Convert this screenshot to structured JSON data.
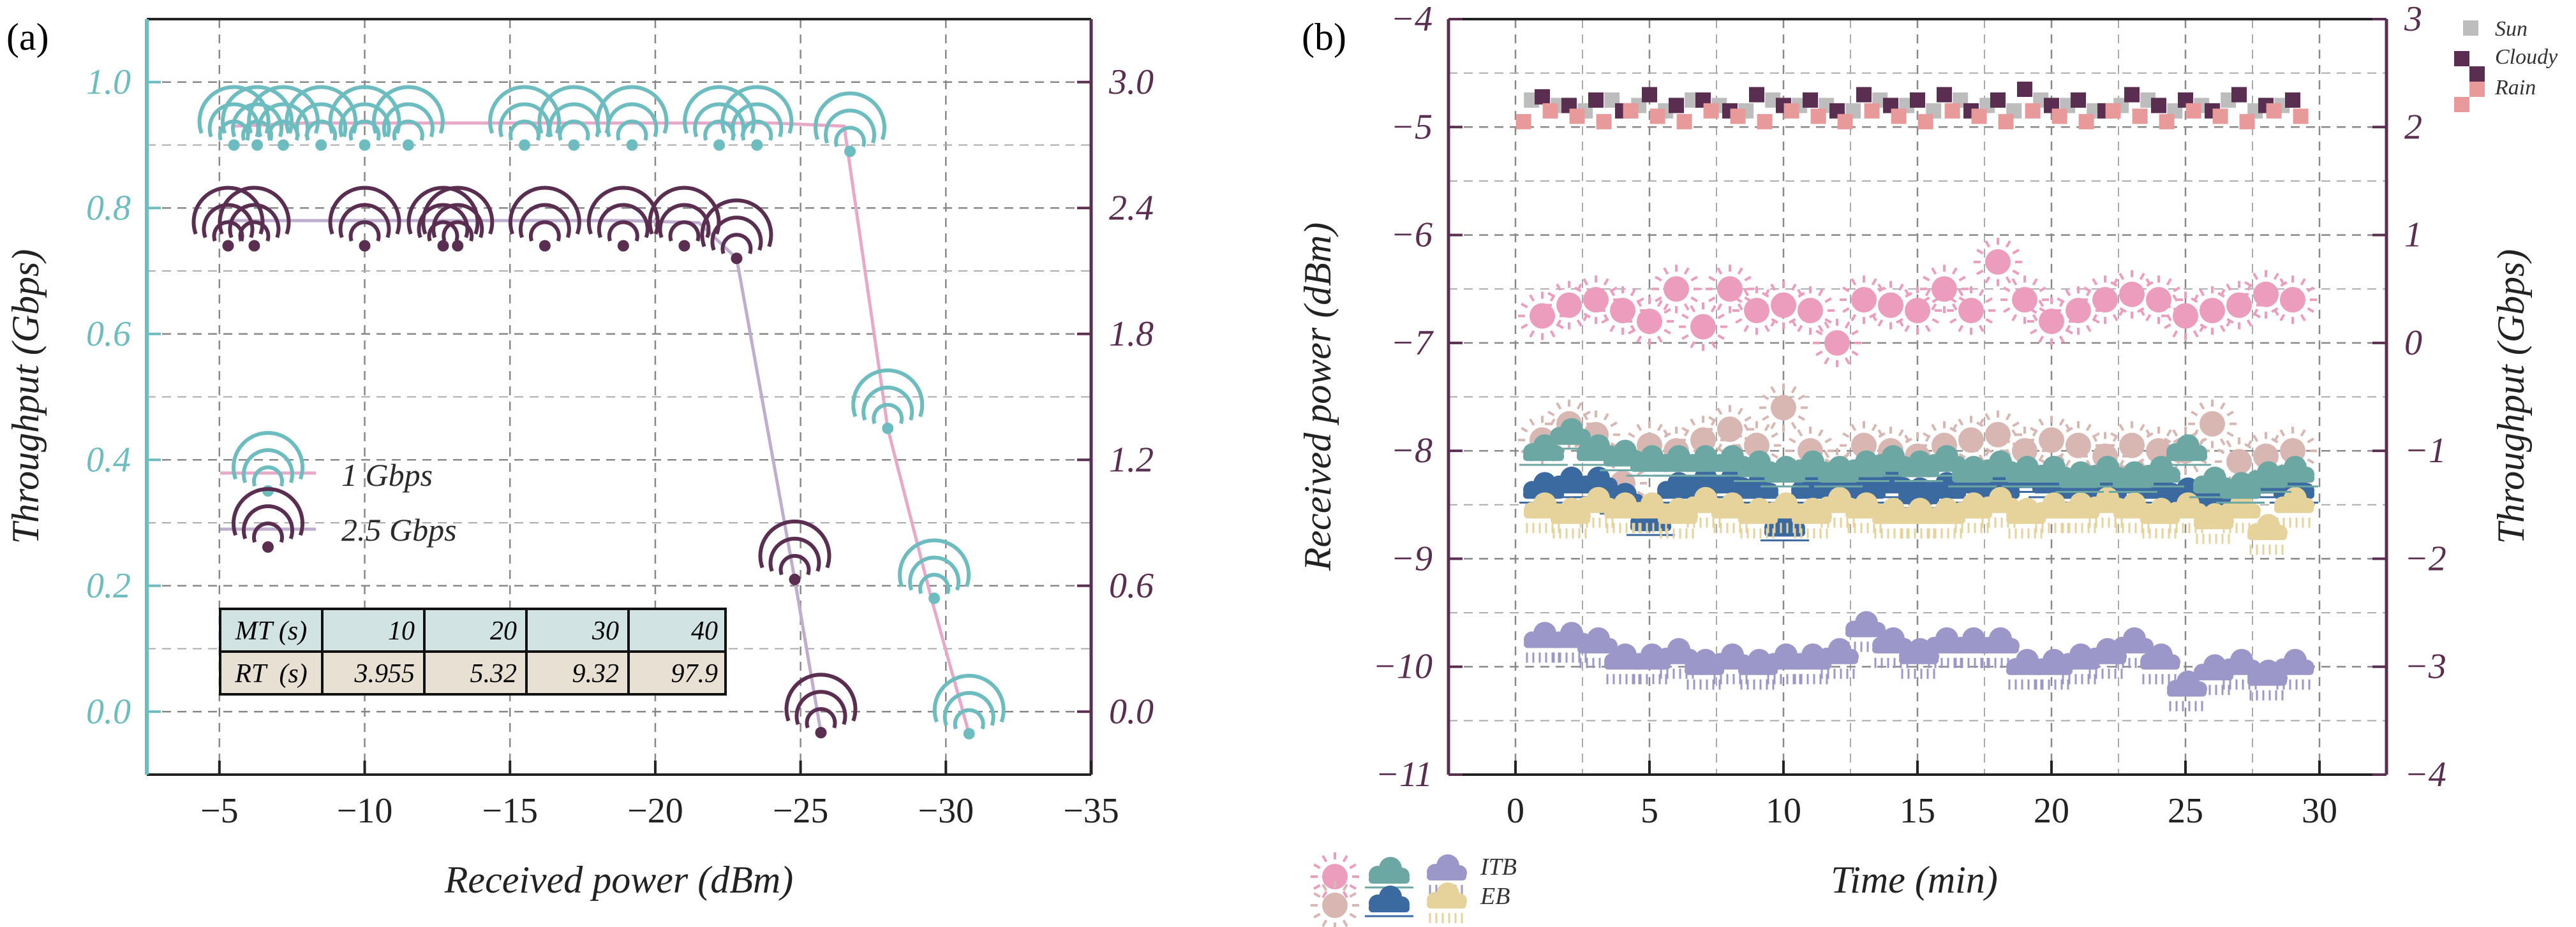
{
  "colors": {
    "teal": "#6cbcc0",
    "plum": "#5a2e50",
    "pink": "#e8a8c8",
    "lilac": "#bfadd0",
    "grid": "#888888",
    "sun_pink": "#ec9dbd",
    "sun_beige": "#d8b7b2",
    "cloud_teal": "#6ca7a4",
    "cloud_blue": "#3b6aa0",
    "rain_lilac": "#9b97c8",
    "rain_yellow": "#e6d39c",
    "sun_grey": "#bdbdbd",
    "cloudy_plum": "#5a2e50",
    "rain_salmon": "#e89a9a",
    "table_blue": "#d2e3e4",
    "table_beige": "#e8e0d2"
  },
  "chart_data": [
    {
      "panel_label": "(a)",
      "type": "line",
      "xlabel": "Received power (dBm)",
      "ylabel_left": "Throughput (Gbps)",
      "xlim": [
        -2.5,
        -35
      ],
      "xticks": [
        -5,
        -10,
        -15,
        -20,
        -25,
        -30,
        -35
      ],
      "xtick_labels": [
        "−5",
        "−10",
        "−15",
        "−20",
        "−25",
        "−30",
        "−35"
      ],
      "ylim_left": [
        -0.1,
        1.1
      ],
      "yticks_left": [
        0.0,
        0.2,
        0.4,
        0.6,
        0.8,
        1.0
      ],
      "ytick_labels_left": [
        "0.0",
        "0.2",
        "0.4",
        "0.6",
        "0.8",
        "1.0"
      ],
      "ylim_right": [
        -0.3,
        3.3
      ],
      "yticks_right": [
        0.0,
        0.6,
        1.2,
        1.8,
        2.4,
        3.0
      ],
      "ytick_labels_right": [
        "0.0",
        "0.6",
        "1.2",
        "1.8",
        "2.4",
        "3.0"
      ],
      "series": [
        {
          "name": "1 Gbps",
          "axis": "left",
          "line_x": [
            -5.5,
            -8,
            -12,
            -16,
            -19,
            -22,
            -24,
            -26.5,
            -28,
            -29.5,
            -30.8
          ],
          "line_y": [
            0.93,
            0.935,
            0.935,
            0.935,
            0.935,
            0.935,
            0.935,
            0.93,
            0.45,
            0.18,
            -0.035
          ],
          "x": [
            -5.5,
            -6.3,
            -7.2,
            -8.5,
            -10,
            -11.5,
            -15.5,
            -17.2,
            -19.2,
            -22.2,
            -23.5,
            -26.7,
            -28,
            -29.6,
            -30.8
          ],
          "y": [
            0.9,
            0.9,
            0.9,
            0.9,
            0.9,
            0.9,
            0.9,
            0.9,
            0.9,
            0.9,
            0.9,
            0.89,
            0.45,
            0.18,
            -0.035
          ]
        },
        {
          "name": "2.5 Gbps",
          "axis": "right",
          "line_x": [
            -5.3,
            -8,
            -12,
            -16,
            -19,
            -21.5,
            -22.8,
            -24.8,
            -25.7
          ],
          "line_y": [
            2.34,
            2.34,
            2.34,
            2.34,
            2.34,
            2.33,
            2.16,
            0.63,
            -0.1
          ],
          "x": [
            -5.3,
            -6.2,
            -10,
            -12.7,
            -13.2,
            -16.2,
            -18.9,
            -21,
            -22.8,
            -24.8,
            -25.7
          ],
          "y": [
            2.22,
            2.22,
            2.22,
            2.22,
            2.22,
            2.22,
            2.22,
            2.22,
            2.16,
            0.63,
            -0.1
          ]
        }
      ],
      "legend": [
        "1 Gbps",
        "2.5 Gbps"
      ],
      "table": {
        "rows": [
          {
            "header": "MT (s)",
            "values": [
              "10",
              "20",
              "30",
              "40"
            ]
          },
          {
            "header": "RT  (s)",
            "values": [
              "3.955",
              "5.32",
              "9.32",
              "97.9"
            ]
          }
        ]
      }
    },
    {
      "panel_label": "(b)",
      "type": "scatter",
      "xlabel": "Time (min)",
      "ylabel_left": "Received power (dBm)",
      "ylabel_right": "Throughput (Gbps)",
      "xlim": [
        -2.5,
        32.5
      ],
      "xticks": [
        0,
        5,
        10,
        15,
        20,
        25,
        30
      ],
      "xtick_labels": [
        "0",
        "5",
        "10",
        "15",
        "20",
        "25",
        "30"
      ],
      "ylim_left": [
        -11,
        -4
      ],
      "yticks_left": [
        -11,
        -10,
        -9,
        -8,
        -7,
        -6,
        -5,
        -4
      ],
      "ytick_labels_left": [
        "−11",
        "−10",
        "−9",
        "−8",
        "−7",
        "−6",
        "−5",
        "−4"
      ],
      "ylim_right": [
        -4,
        3
      ],
      "yticks_right": [
        -4,
        -3,
        -2,
        -1,
        0,
        1,
        2,
        3
      ],
      "ytick_labels_right": [
        "−4",
        "−3",
        "−2",
        "−1",
        "0",
        "1",
        "2",
        "3"
      ],
      "power_series": [
        {
          "name": "Sun ITB",
          "marker": "sun",
          "x": [
            1,
            2,
            3,
            4,
            5,
            6,
            7,
            8,
            9,
            10,
            11,
            12,
            13,
            14,
            15,
            16,
            17,
            18,
            19,
            20,
            21,
            22,
            23,
            24,
            25,
            26,
            27,
            28,
            29
          ],
          "y": [
            -6.75,
            -6.65,
            -6.6,
            -6.7,
            -6.8,
            -6.5,
            -6.85,
            -6.5,
            -6.7,
            -6.65,
            -6.7,
            -7.0,
            -6.6,
            -6.65,
            -6.7,
            -6.5,
            -6.7,
            -6.25,
            -6.6,
            -6.8,
            -6.7,
            -6.6,
            -6.55,
            -6.6,
            -6.75,
            -6.7,
            -6.65,
            -6.55,
            -6.6
          ]
        },
        {
          "name": "Sun EB",
          "marker": "sun",
          "x": [
            1,
            2,
            3,
            4,
            5,
            6,
            7,
            8,
            9,
            10,
            11,
            12,
            13,
            14,
            15,
            16,
            17,
            18,
            19,
            20,
            21,
            22,
            23,
            24,
            25,
            26,
            27,
            28,
            29
          ],
          "y": [
            -7.9,
            -7.75,
            -7.85,
            -8.3,
            -7.95,
            -8.0,
            -7.9,
            -7.8,
            -7.95,
            -7.6,
            -8.0,
            -8.2,
            -7.95,
            -8.0,
            -8.05,
            -7.95,
            -7.9,
            -7.85,
            -8.0,
            -7.9,
            -7.95,
            -8.05,
            -7.95,
            -8.0,
            -8.0,
            -7.75,
            -8.1,
            -8.05,
            -8.0
          ]
        },
        {
          "name": "Cloud ITB",
          "marker": "cloud",
          "x": [
            1,
            2,
            3,
            4,
            5,
            6,
            7,
            8,
            9,
            10,
            11,
            12,
            13,
            14,
            15,
            16,
            17,
            18,
            19,
            20,
            21,
            22,
            23,
            24,
            25,
            26,
            27,
            28,
            29
          ],
          "y": [
            -8.0,
            -7.85,
            -8.0,
            -8.05,
            -8.1,
            -8.1,
            -8.1,
            -8.1,
            -8.15,
            -8.2,
            -8.15,
            -8.2,
            -8.15,
            -8.1,
            -8.15,
            -8.1,
            -8.2,
            -8.15,
            -8.2,
            -8.2,
            -8.25,
            -8.2,
            -8.25,
            -8.2,
            -8.0,
            -8.3,
            -8.35,
            -8.25,
            -8.2
          ]
        },
        {
          "name": "Cloud EB",
          "marker": "cloud",
          "x": [
            1,
            2,
            3,
            4,
            5,
            6,
            7,
            8,
            9,
            10,
            11,
            12,
            13,
            14,
            15,
            16,
            17,
            18,
            19,
            20,
            21,
            22,
            23,
            24,
            25,
            26,
            27,
            28,
            29
          ],
          "y": [
            -8.35,
            -8.3,
            -8.3,
            -8.45,
            -8.65,
            -8.35,
            -8.3,
            -8.3,
            -8.35,
            -8.7,
            -8.35,
            -8.35,
            -8.35,
            -8.3,
            -8.4,
            -8.35,
            -8.3,
            -8.35,
            -8.25,
            -8.3,
            -8.35,
            -8.35,
            -8.3,
            -8.35,
            -8.4,
            -8.45,
            -8.35,
            -8.3,
            -8.35
          ]
        },
        {
          "name": "Rain ITB",
          "marker": "rain",
          "x": [
            1,
            2,
            3,
            4,
            5,
            6,
            7,
            8,
            9,
            10,
            11,
            12,
            13,
            14,
            15,
            16,
            17,
            18,
            19,
            20,
            21,
            22,
            23,
            24,
            25,
            26,
            27,
            28,
            29
          ],
          "y": [
            -9.75,
            -9.75,
            -9.8,
            -9.95,
            -9.95,
            -9.9,
            -10.0,
            -9.95,
            -10.0,
            -9.95,
            -9.95,
            -9.9,
            -9.65,
            -9.8,
            -9.9,
            -9.8,
            -9.8,
            -9.8,
            -10.0,
            -10.0,
            -9.95,
            -9.9,
            -9.8,
            -9.95,
            -10.2,
            -10.05,
            -10.0,
            -10.1,
            -10.0
          ]
        },
        {
          "name": "Rain EB",
          "marker": "rain",
          "x": [
            1,
            2,
            3,
            4,
            5,
            6,
            7,
            8,
            9,
            10,
            11,
            12,
            13,
            14,
            15,
            16,
            17,
            18,
            19,
            20,
            21,
            22,
            23,
            24,
            25,
            26,
            27,
            28,
            29
          ],
          "y": [
            -8.55,
            -8.6,
            -8.5,
            -8.55,
            -8.55,
            -8.6,
            -8.5,
            -8.55,
            -8.6,
            -8.55,
            -8.6,
            -8.5,
            -8.55,
            -8.6,
            -8.6,
            -8.6,
            -8.55,
            -8.5,
            -8.6,
            -8.55,
            -8.55,
            -8.5,
            -8.55,
            -8.6,
            -8.55,
            -8.65,
            -8.55,
            -8.75,
            -8.5
          ]
        }
      ],
      "throughput_series": [
        {
          "name": "Sun",
          "marker": "square",
          "x": [
            0.6,
            1.6,
            2.6,
            3.6,
            4.6,
            5.6,
            6.6,
            7.6,
            8.6,
            9.6,
            10.6,
            11.6,
            12.6,
            13.6,
            14.6,
            15.6,
            16.6,
            17.6,
            18.6,
            19.6,
            20.6,
            21.6,
            22.6,
            23.6,
            24.6,
            25.6,
            26.6,
            27.6,
            28.6
          ],
          "y": [
            2.25,
            2.2,
            2.15,
            2.25,
            2.2,
            2.15,
            2.25,
            2.2,
            2.15,
            2.25,
            2.2,
            2.2,
            2.15,
            2.25,
            2.2,
            2.15,
            2.25,
            2.2,
            2.15,
            2.25,
            2.2,
            2.15,
            2.2,
            2.25,
            2.15,
            2.2,
            2.25,
            2.15,
            2.2
          ]
        },
        {
          "name": "Cloudy",
          "marker": "square",
          "x": [
            1.0,
            2.0,
            3.0,
            4.0,
            5.0,
            6.0,
            7.0,
            8.0,
            9.0,
            10.0,
            11.0,
            12.0,
            13.0,
            14.0,
            15.0,
            16.0,
            17.0,
            18.0,
            19.0,
            20.0,
            21.0,
            22.0,
            23.0,
            24.0,
            25.0,
            26.0,
            27.0,
            28.0,
            29.0
          ],
          "y": [
            2.28,
            2.2,
            2.25,
            2.15,
            2.3,
            2.2,
            2.25,
            2.15,
            2.3,
            2.2,
            2.25,
            2.15,
            2.3,
            2.2,
            2.25,
            2.3,
            2.15,
            2.25,
            2.35,
            2.2,
            2.25,
            2.15,
            2.3,
            2.2,
            2.25,
            2.15,
            2.3,
            2.2,
            2.25
          ]
        },
        {
          "name": "Rain",
          "marker": "square",
          "x": [
            0.3,
            1.3,
            2.3,
            3.3,
            4.3,
            5.3,
            6.3,
            7.3,
            8.3,
            9.3,
            10.3,
            11.3,
            12.3,
            13.3,
            14.3,
            15.3,
            16.3,
            17.3,
            18.3,
            19.3,
            20.3,
            21.3,
            22.3,
            23.3,
            24.3,
            25.3,
            26.3,
            27.3,
            28.3,
            29.3
          ],
          "y": [
            2.05,
            2.15,
            2.1,
            2.05,
            2.15,
            2.1,
            2.05,
            2.15,
            2.1,
            2.05,
            2.15,
            2.1,
            2.05,
            2.15,
            2.1,
            2.05,
            2.15,
            2.1,
            2.05,
            2.15,
            2.1,
            2.05,
            2.15,
            2.1,
            2.05,
            2.15,
            2.1,
            2.05,
            2.15,
            2.1
          ]
        }
      ],
      "legend_top": [
        "Sun",
        "Cloudy",
        "Rain"
      ],
      "legend_bottom": [
        "ITB",
        "EB"
      ]
    }
  ]
}
